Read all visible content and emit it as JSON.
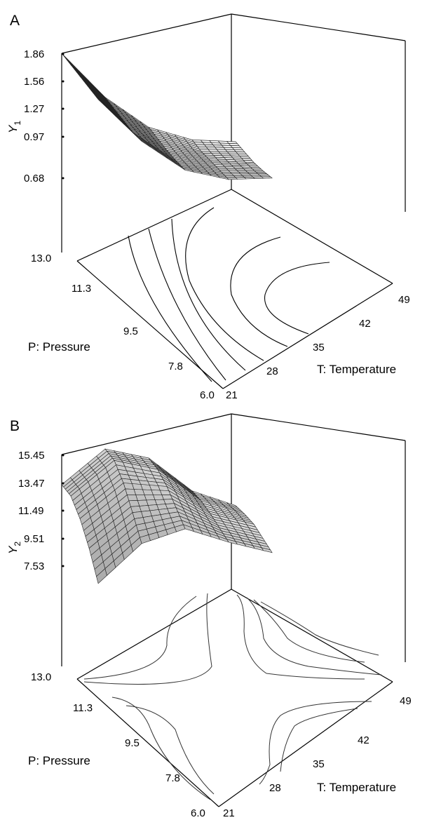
{
  "chart_data": [
    {
      "panel": "A",
      "type": "surface",
      "zlabel": "Y1",
      "xlabel": "P: Pressure",
      "ylabel": "T: Temperature",
      "x_ticks": [
        "13.0",
        "11.3",
        "9.5",
        "7.8",
        "6.0"
      ],
      "y_ticks": [
        "21",
        "28",
        "35",
        "42",
        "49"
      ],
      "z_ticks": [
        "1.86",
        "1.56",
        "1.27",
        "0.97",
        "0.68"
      ],
      "xlim": [
        6.0,
        13.0
      ],
      "ylim": [
        21,
        49
      ],
      "zlim": [
        0.68,
        1.86
      ],
      "surface_value_grid": {
        "rows_T": [
          21,
          28,
          35,
          42,
          49
        ],
        "cols_P": [
          6.0,
          7.8,
          9.5,
          11.3,
          13.0
        ],
        "values": [
          [
            1.62,
            1.68,
            1.74,
            1.8,
            1.86
          ],
          [
            1.18,
            1.22,
            1.28,
            1.34,
            1.4
          ],
          [
            0.86,
            0.9,
            0.95,
            1.01,
            1.07
          ],
          [
            0.72,
            0.76,
            0.8,
            0.84,
            0.9
          ],
          [
            0.68,
            0.7,
            0.73,
            0.78,
            0.83
          ]
        ]
      },
      "contours": "projected on base plane"
    },
    {
      "panel": "B",
      "type": "surface",
      "zlabel": "Y2",
      "xlabel": "P: Pressure",
      "ylabel": "T: Temperature",
      "x_ticks": [
        "13.0",
        "11.3",
        "9.5",
        "7.8",
        "6.0"
      ],
      "y_ticks": [
        "21",
        "28",
        "35",
        "42",
        "49"
      ],
      "z_ticks": [
        "15.45",
        "13.47",
        "11.49",
        "9.51",
        "7.53"
      ],
      "xlim": [
        6.0,
        13.0
      ],
      "ylim": [
        21,
        49
      ],
      "zlim": [
        7.53,
        15.45
      ],
      "surface_value_grid": {
        "rows_T": [
          21,
          28,
          35,
          42,
          49
        ],
        "cols_P": [
          6.0,
          7.8,
          9.5,
          11.3,
          13.0
        ],
        "values": [
          [
            7.6,
            9.8,
            11.6,
            12.9,
            13.4
          ],
          [
            9.9,
            11.8,
            13.6,
            14.9,
            15.4
          ],
          [
            10.4,
            11.6,
            12.8,
            13.7,
            14.2
          ],
          [
            8.9,
            9.6,
            10.3,
            10.9,
            11.3
          ],
          [
            7.6,
            8.3,
            9.0,
            9.4,
            9.7
          ]
        ]
      },
      "contours": "projected on base plane"
    }
  ],
  "panels": [
    {
      "letter": "A",
      "z_symbol": "Y",
      "z_sub": "1"
    },
    {
      "letter": "B",
      "z_symbol": "Y",
      "z_sub": "2"
    }
  ]
}
